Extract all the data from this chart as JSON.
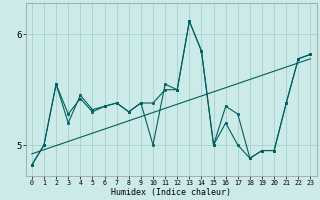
{
  "xlabel": "Humidex (Indice chaleur)",
  "bg_color": "#cceae8",
  "grid_color": "#aad4d2",
  "line_color": "#006060",
  "xlim": [
    -0.5,
    23.5
  ],
  "ylim": [
    4.72,
    6.28
  ],
  "yticks": [
    5,
    6
  ],
  "xticks": [
    0,
    1,
    2,
    3,
    4,
    5,
    6,
    7,
    8,
    9,
    10,
    11,
    12,
    13,
    14,
    15,
    16,
    17,
    18,
    19,
    20,
    21,
    22,
    23
  ],
  "series1_x": [
    0,
    1,
    2,
    3,
    4,
    5,
    6,
    7,
    8,
    9,
    10,
    11,
    12,
    13,
    14,
    15,
    16,
    17,
    18,
    19,
    20,
    21,
    22,
    23
  ],
  "series1_y": [
    4.82,
    5.0,
    5.55,
    5.28,
    5.42,
    5.3,
    5.35,
    5.38,
    5.3,
    5.38,
    5.0,
    5.55,
    5.5,
    6.12,
    5.85,
    5.0,
    5.35,
    5.28,
    4.88,
    4.95,
    4.95,
    5.38,
    5.78,
    5.82
  ],
  "series2_x": [
    0,
    1,
    2,
    3,
    4,
    5,
    6,
    7,
    8,
    9,
    10,
    11,
    12,
    13,
    14,
    15,
    16,
    17,
    18,
    19,
    20,
    21,
    22,
    23
  ],
  "series2_y": [
    4.82,
    5.0,
    5.55,
    5.2,
    5.45,
    5.32,
    5.35,
    5.38,
    5.3,
    5.38,
    5.38,
    5.5,
    5.5,
    6.12,
    5.85,
    5.0,
    5.2,
    5.0,
    4.88,
    4.95,
    4.95,
    5.38,
    5.78,
    5.82
  ],
  "trend_x": [
    0,
    23
  ],
  "trend_y": [
    4.92,
    5.78
  ],
  "xlabel_fontsize": 6.0,
  "xtick_fontsize": 4.8,
  "ytick_fontsize": 6.5
}
